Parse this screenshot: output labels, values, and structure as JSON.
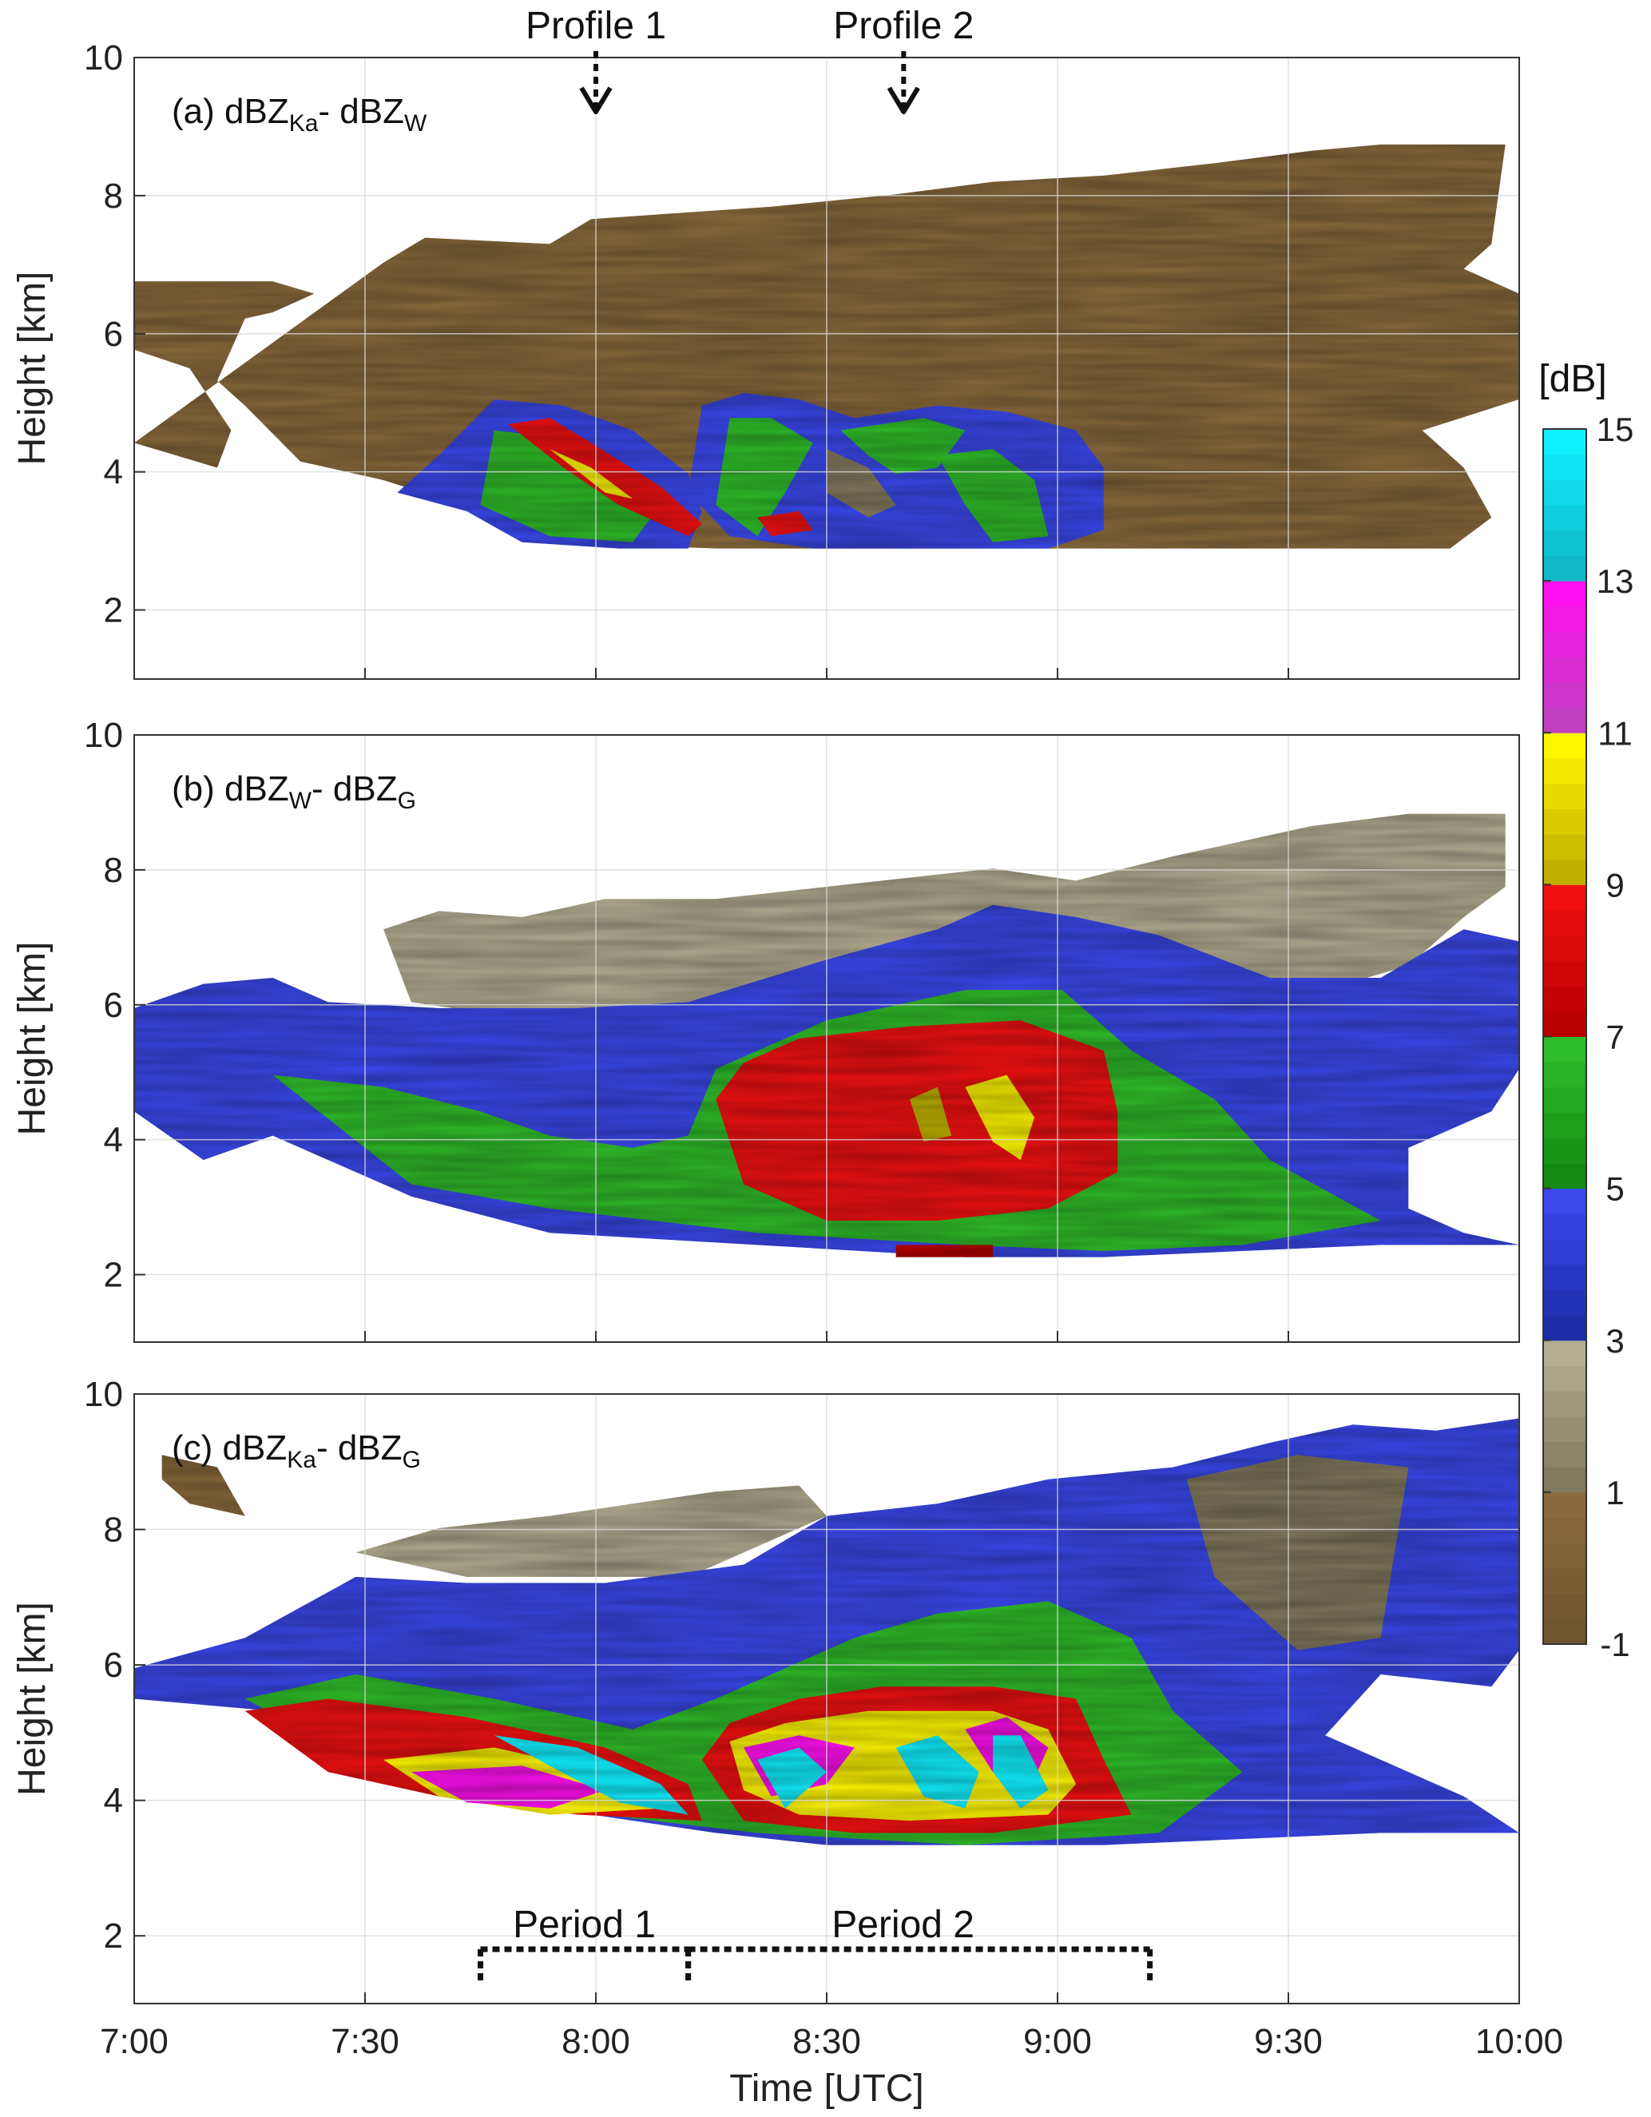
{
  "chart_data": [
    {
      "type": "heatmap",
      "panel_label": "(a)",
      "title_main": "dBZ",
      "title_sub1": "Ka",
      "title_mid": "- dBZ",
      "title_sub2": "W",
      "ylabel": "Height [km]",
      "ylim": [
        1,
        10
      ],
      "yticks": [
        "2",
        "4",
        "6",
        "8",
        "10"
      ],
      "xlim": [
        "7:00",
        "10:00"
      ],
      "xticks": [
        "7:00",
        "7:30",
        "8:00",
        "8:30",
        "9:00",
        "9:30",
        "10:00"
      ],
      "show_xticklabels": false,
      "grid": true,
      "annotations": [
        {
          "text": "Profile 1",
          "x": "8:00",
          "y_km": 9.3
        },
        {
          "text": "Profile 2",
          "x": "8:40",
          "y_km": 9.3
        }
      ]
    },
    {
      "type": "heatmap",
      "panel_label": "(b)",
      "title_main": "dBZ",
      "title_sub1": "W",
      "title_mid": "- dBZ",
      "title_sub2": "G",
      "ylabel": "Height [km]",
      "ylim": [
        1,
        10
      ],
      "yticks": [
        "2",
        "4",
        "6",
        "8",
        "10"
      ],
      "xlim": [
        "7:00",
        "10:00"
      ],
      "xticks": [
        "7:00",
        "7:30",
        "8:00",
        "8:30",
        "9:00",
        "9:30",
        "10:00"
      ],
      "show_xticklabels": false,
      "grid": true
    },
    {
      "type": "heatmap",
      "panel_label": "(c)",
      "title_main": "dBZ",
      "title_sub1": "Ka",
      "title_mid": "- dBZ",
      "title_sub2": "G",
      "ylabel": "Height [km]",
      "xlabel": "Time [UTC]",
      "ylim": [
        1,
        10
      ],
      "yticks": [
        "2",
        "4",
        "6",
        "8",
        "10"
      ],
      "xlim": [
        "7:00",
        "10:00"
      ],
      "xticks": [
        "7:00",
        "7:30",
        "8:00",
        "8:30",
        "9:00",
        "9:30",
        "10:00"
      ],
      "show_xticklabels": true,
      "grid": true,
      "periods": [
        {
          "label": "Period 1",
          "start": "7:45",
          "end": "8:12"
        },
        {
          "label": "Period 2",
          "start": "8:12",
          "end": "9:12"
        }
      ]
    }
  ],
  "colorbar": {
    "unit_label": "[dB]",
    "ticks": [
      "-1",
      "1",
      "3",
      "5",
      "7",
      "9",
      "11",
      "13",
      "15"
    ],
    "range": [
      -1,
      15
    ],
    "bands": [
      {
        "from": -1,
        "to": 1,
        "colors": [
          "#6f5530",
          "#8a6a3d"
        ]
      },
      {
        "from": 1,
        "to": 3,
        "colors": [
          "#827a5e",
          "#b4ae92"
        ]
      },
      {
        "from": 3,
        "to": 5,
        "colors": [
          "#1c2ca8",
          "#3a48ec"
        ]
      },
      {
        "from": 5,
        "to": 7,
        "colors": [
          "#138a13",
          "#2fbd2a"
        ]
      },
      {
        "from": 7,
        "to": 9,
        "colors": [
          "#b80000",
          "#f01010"
        ]
      },
      {
        "from": 9,
        "to": 11,
        "colors": [
          "#bfb000",
          "#fff700"
        ]
      },
      {
        "from": 11,
        "to": 13,
        "colors": [
          "#c040c0",
          "#ff10f0"
        ]
      },
      {
        "from": 13,
        "to": 15,
        "colors": [
          "#10b8c8",
          "#10f0ff"
        ]
      }
    ]
  }
}
